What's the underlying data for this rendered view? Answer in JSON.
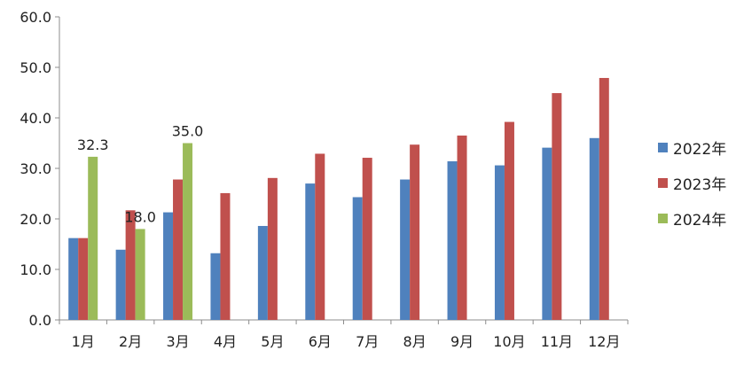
{
  "chart_data": {
    "type": "bar",
    "categories": [
      "1月",
      "2月",
      "3月",
      "4月",
      "5月",
      "6月",
      "7月",
      "8月",
      "9月",
      "10月",
      "11月",
      "12月"
    ],
    "series": [
      {
        "name": "2022年",
        "color": "#4f81bd",
        "values": [
          16.2,
          13.9,
          21.3,
          13.2,
          18.6,
          27.0,
          24.3,
          27.8,
          31.4,
          30.6,
          34.1,
          36.0
        ]
      },
      {
        "name": "2023年",
        "color": "#c0504d",
        "values": [
          16.2,
          21.7,
          27.8,
          25.1,
          28.1,
          32.9,
          32.1,
          34.7,
          36.5,
          39.2,
          44.9,
          47.9
        ]
      },
      {
        "name": "2024年",
        "color": "#9bbb59",
        "values": [
          32.3,
          18.0,
          35.0,
          null,
          null,
          null,
          null,
          null,
          null,
          null,
          null,
          null
        ]
      }
    ],
    "data_labels": [
      {
        "series": 2,
        "index": 0,
        "text": "32.3"
      },
      {
        "series": 2,
        "index": 1,
        "text": "18.0"
      },
      {
        "series": 2,
        "index": 2,
        "text": "35.0"
      }
    ],
    "y_ticks": [
      "0.0",
      "10.0",
      "20.0",
      "30.0",
      "40.0",
      "50.0",
      "60.0"
    ],
    "ylim": [
      0,
      60
    ],
    "grid": false,
    "legend_position": "right",
    "title": "",
    "xlabel": "",
    "ylabel": ""
  }
}
